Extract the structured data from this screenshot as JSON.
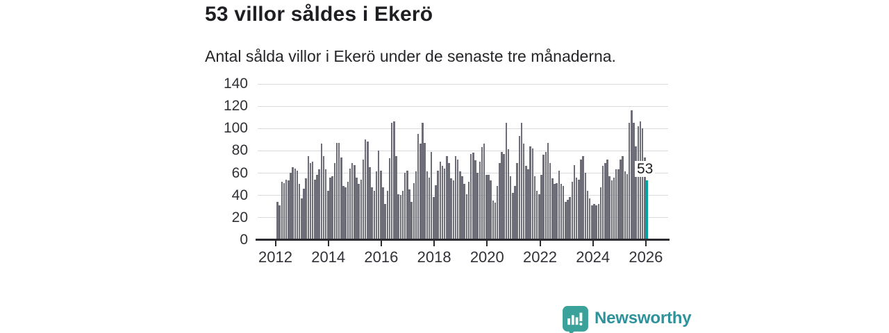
{
  "header": {
    "title": "53 villor såldes i Ekerö",
    "subtitle": "Antal sålda villor i Ekerö under de senaste tre månaderna."
  },
  "chart_data": {
    "type": "bar",
    "title": "53 villor såldes i Ekerö",
    "subtitle": "Antal sålda villor i Ekerö under de senaste tre månaderna.",
    "frequency": "monthly",
    "x_start": "2012-01",
    "x_tick_labels": [
      "2012",
      "2014",
      "2016",
      "2018",
      "2020",
      "2022",
      "2024",
      "2026"
    ],
    "y_ticks": [
      0,
      20,
      40,
      60,
      80,
      100,
      120,
      140
    ],
    "ylim": [
      0,
      140
    ],
    "grid": true,
    "bar_color": "#6e6e78",
    "series": [
      {
        "values": [
          34,
          31,
          52,
          51,
          54,
          53,
          60,
          65,
          64,
          62,
          50,
          37,
          46,
          55,
          75,
          69,
          70,
          54,
          58,
          63,
          86,
          75,
          63,
          44,
          56,
          57,
          69,
          87,
          87,
          74,
          48,
          47,
          52,
          64,
          69,
          67,
          56,
          50,
          54,
          72,
          90,
          88,
          65,
          47,
          44,
          61,
          80,
          62,
          47,
          32,
          44,
          73,
          105,
          106,
          75,
          41,
          40,
          44,
          60,
          62,
          45,
          34,
          51,
          61,
          95,
          86,
          105,
          87,
          61,
          56,
          79,
          38,
          49,
          62,
          70,
          66,
          64,
          75,
          69,
          55,
          53,
          75,
          72,
          61,
          57,
          50,
          41,
          52,
          77,
          78,
          71,
          60,
          70,
          83,
          86,
          58,
          58,
          53,
          35,
          33,
          48,
          69,
          79,
          77,
          105,
          81,
          57,
          42,
          48,
          69,
          93,
          105,
          86,
          66,
          63,
          84,
          82,
          57,
          44,
          41,
          58,
          76,
          79,
          87,
          69,
          55,
          50,
          51,
          62,
          50,
          48,
          34,
          36,
          38,
          52,
          67,
          56,
          54,
          72,
          75,
          60,
          44,
          37,
          31,
          32,
          31,
          32,
          47,
          66,
          69,
          72,
          57,
          53,
          56,
          63,
          63,
          72,
          75,
          61,
          59,
          105,
          116,
          105,
          84,
          102,
          106,
          100,
          74,
          53
        ]
      }
    ],
    "highlight": {
      "index": 168,
      "value": 53,
      "label": "53",
      "color": "#00a49f"
    }
  },
  "branding": {
    "logo_text": "Newsworthy",
    "logo_icon": "newsworthy-bar-chart-bubble-icon",
    "icon_color": "#3ba29b",
    "text_color": "#2f929b"
  }
}
